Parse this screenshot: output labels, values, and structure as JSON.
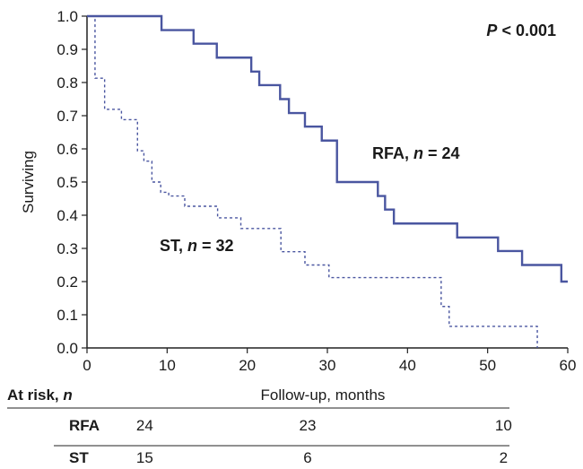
{
  "chart_data": {
    "type": "line",
    "title": "",
    "xlabel": "Follow-up, months",
    "ylabel": "Surviving",
    "xlim": [
      0,
      60
    ],
    "ylim": [
      0,
      1.0
    ],
    "x_ticks": [
      "0",
      "10",
      "20",
      "30",
      "40",
      "50",
      "60"
    ],
    "y_ticks": [
      "0.0",
      "0.1",
      "0.2",
      "0.3",
      "0.4",
      "0.5",
      "0.6",
      "0.7",
      "0.8",
      "0.9",
      "1.0"
    ],
    "p_value": {
      "prefix": "P",
      "rest": " < 0.001"
    },
    "series": [
      {
        "name": "RFA",
        "label_n": "24",
        "style": "solid",
        "color": "#4a56a0",
        "steps": [
          [
            0,
            1.0
          ],
          [
            9.3,
            0.958
          ],
          [
            13.3,
            0.917
          ],
          [
            16.2,
            0.875
          ],
          [
            20.5,
            0.833
          ],
          [
            21.5,
            0.792
          ],
          [
            24.1,
            0.75
          ],
          [
            25.2,
            0.708
          ],
          [
            27.2,
            0.667
          ],
          [
            29.3,
            0.625
          ],
          [
            31.2,
            0.5
          ],
          [
            36.3,
            0.458
          ],
          [
            37.2,
            0.417
          ],
          [
            38.3,
            0.375
          ],
          [
            46.2,
            0.333
          ],
          [
            51.3,
            0.292
          ],
          [
            54.3,
            0.25
          ],
          [
            59.2,
            0.2
          ],
          [
            60,
            0.2
          ]
        ]
      },
      {
        "name": "ST",
        "label_n": "32",
        "style": "dashed",
        "color": "#4a56a0",
        "steps": [
          [
            0,
            1.0
          ],
          [
            1.0,
            0.813
          ],
          [
            2.2,
            0.719
          ],
          [
            4.3,
            0.688
          ],
          [
            6.3,
            0.594
          ],
          [
            7.1,
            0.563
          ],
          [
            8.1,
            0.5
          ],
          [
            9.2,
            0.469
          ],
          [
            10.2,
            0.458
          ],
          [
            12.2,
            0.427
          ],
          [
            16.3,
            0.392
          ],
          [
            19.2,
            0.36
          ],
          [
            24.2,
            0.29
          ],
          [
            27.2,
            0.25
          ],
          [
            30.2,
            0.212
          ],
          [
            44.2,
            0.125
          ],
          [
            45.2,
            0.065
          ],
          [
            56.2,
            0.0
          ]
        ]
      }
    ],
    "at_risk": {
      "header_prefix": "At risk, ",
      "header_n": "n",
      "times": [
        10,
        30,
        55
      ],
      "rows": [
        {
          "label": "RFA",
          "values": [
            "24",
            "23",
            "10"
          ]
        },
        {
          "label": "ST",
          "values": [
            "15",
            "6",
            "2"
          ]
        }
      ]
    }
  }
}
